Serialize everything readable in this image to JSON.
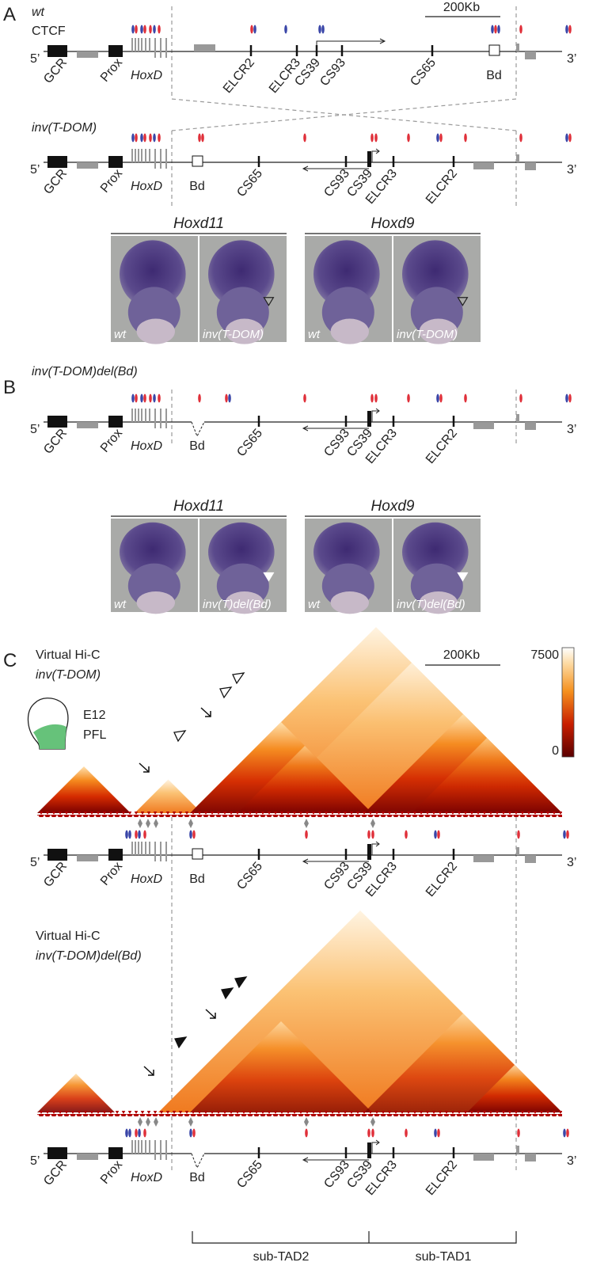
{
  "panel_a": {
    "label": "A",
    "wt": {
      "genotype": "wt",
      "ctcf": "CTCF",
      "scale_bar": "200Kb",
      "end5": "5’",
      "end3": "3’",
      "features": [
        "GCR",
        "Prox",
        "HoxD",
        "ELCR2",
        "ELCR3",
        "CS39",
        "CS93",
        "CS65",
        "Bd"
      ]
    },
    "inv": {
      "genotype": "inv(T-DOM)",
      "end5": "5’",
      "end3": "3’",
      "features": [
        "GCR",
        "Prox",
        "HoxD",
        "Bd",
        "CS65",
        "CS93",
        "CS39",
        "ELCR3",
        "ELCR2"
      ]
    },
    "wish": [
      {
        "gene": "Hoxd11",
        "images": [
          "wt",
          "inv(T-DOM)"
        ]
      },
      {
        "gene": "Hoxd9",
        "images": [
          "wt",
          "inv(T-DOM)"
        ]
      }
    ]
  },
  "panel_b": {
    "label": "B",
    "track": {
      "genotype": "inv(T-DOM)del(Bd)",
      "end5": "5’",
      "end3": "3’",
      "features": [
        "GCR",
        "Prox",
        "HoxD",
        "Bd",
        "CS65",
        "CS93",
        "CS39",
        "ELCR3",
        "ELCR2"
      ]
    },
    "wish": [
      {
        "gene": "Hoxd11",
        "images": [
          "wt",
          "inv(T)del(Bd)"
        ]
      },
      {
        "gene": "Hoxd9",
        "images": [
          "wt",
          "inv(T)del(Bd)"
        ]
      }
    ]
  },
  "panel_c": {
    "label": "C",
    "scale_bar": "200Kb",
    "colorbar": {
      "max": 7500,
      "min": 0
    },
    "sample": {
      "stage": "E12",
      "tissue": "PFL"
    },
    "maps": [
      {
        "title": "Virtual Hi-C",
        "genotype": "inv(T-DOM)",
        "track": {
          "end5": "5’",
          "end3": "3’",
          "features": [
            "GCR",
            "Prox",
            "HoxD",
            "Bd",
            "CS65",
            "CS93",
            "CS39",
            "ELCR3",
            "ELCR2"
          ]
        }
      },
      {
        "title": "Virtual Hi-C",
        "genotype": "inv(T-DOM)del(Bd)",
        "track": {
          "end5": "5’",
          "end3": "3’",
          "features": [
            "GCR",
            "Prox",
            "HoxD",
            "Bd",
            "CS65",
            "CS93",
            "CS39",
            "ELCR3",
            "ELCR2"
          ]
        }
      }
    ],
    "sub_tads": [
      "sub-TAD2",
      "sub-TAD1"
    ]
  }
}
